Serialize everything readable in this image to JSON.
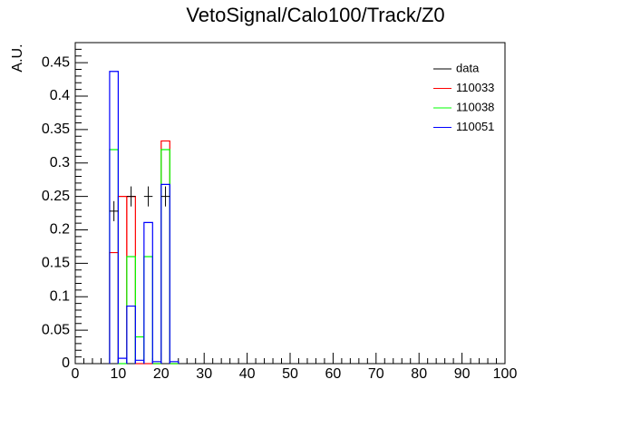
{
  "chart_data": {
    "type": "histogram",
    "title": "VetoSignal/Calo100/Track/Z0",
    "ylabel": "A.U.",
    "bins": [
      8,
      10,
      12,
      14,
      16,
      18,
      20,
      22,
      24
    ],
    "series": [
      {
        "name": "data",
        "color": "#000000",
        "style": "points",
        "values": [
          0.228,
          null,
          0.25,
          null,
          0.25,
          null,
          0.25,
          null
        ],
        "errors": [
          0.015,
          null,
          0.015,
          null,
          0.015,
          null,
          0.015,
          null
        ]
      },
      {
        "name": "110033",
        "color": "#ff0000",
        "style": "step",
        "values": [
          0.166,
          0.25,
          0.25,
          0,
          0,
          0,
          0.333,
          0
        ]
      },
      {
        "name": "110038",
        "color": "#00ff00",
        "style": "step",
        "values": [
          0.32,
          0,
          0.16,
          0.04,
          0.16,
          0,
          0.32,
          0
        ]
      },
      {
        "name": "110051",
        "color": "#0000ff",
        "style": "step",
        "values": [
          0.437,
          0.008,
          0.086,
          0.005,
          0.211,
          0.003,
          0.268,
          0.003
        ]
      }
    ],
    "xlim": [
      0,
      100
    ],
    "xticks": [
      0,
      10,
      20,
      30,
      40,
      50,
      60,
      70,
      80,
      90,
      100
    ],
    "ylim": [
      0,
      0.48
    ],
    "yticks": [
      0,
      0.05,
      0.1,
      0.15,
      0.2,
      0.25,
      0.3,
      0.35,
      0.4,
      0.45
    ]
  }
}
